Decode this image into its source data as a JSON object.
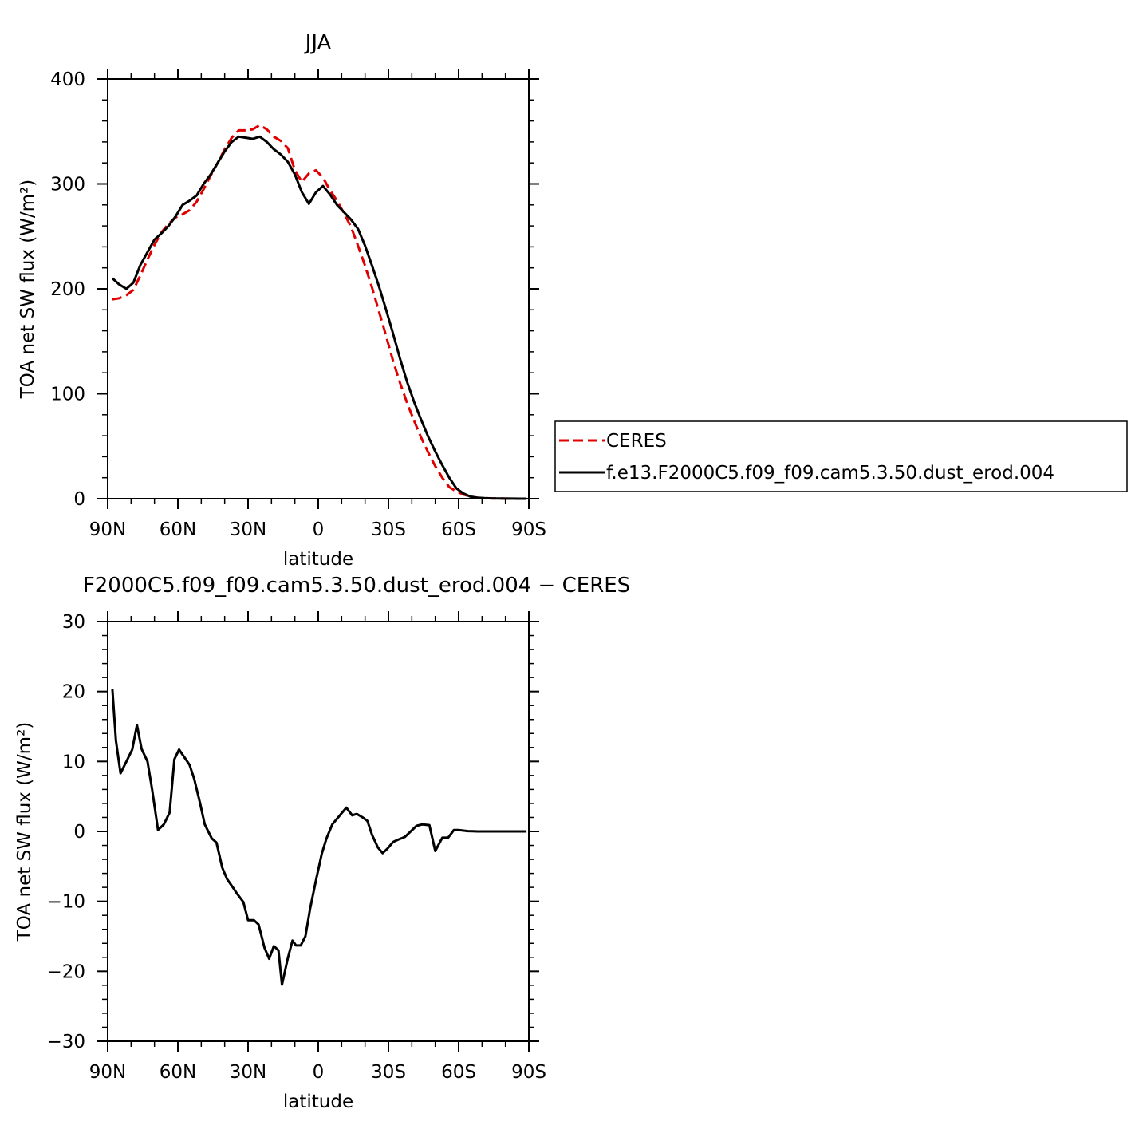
{
  "chart_data": [
    {
      "type": "line",
      "title": "JJA",
      "xlabel": "latitude",
      "ylabel": "TOA net SW flux (W/m²)",
      "xlim": [
        90,
        -90
      ],
      "ylim": [
        0,
        400
      ],
      "x_ticks": [
        {
          "value": 90,
          "label": "90N"
        },
        {
          "value": 60,
          "label": "60N"
        },
        {
          "value": 30,
          "label": "30N"
        },
        {
          "value": 0,
          "label": "0"
        },
        {
          "value": -30,
          "label": "30S"
        },
        {
          "value": -60,
          "label": "60S"
        },
        {
          "value": -90,
          "label": "90S"
        }
      ],
      "y_ticks": [
        {
          "value": 0,
          "label": "0"
        },
        {
          "value": 100,
          "label": "100"
        },
        {
          "value": 200,
          "label": "200"
        },
        {
          "value": 300,
          "label": "300"
        },
        {
          "value": 400,
          "label": "400"
        }
      ],
      "grid": false,
      "legend": {
        "position": "right",
        "entries": [
          {
            "label": "CERES",
            "color": "#e00000",
            "dash": "dashed"
          },
          {
            "label": "f.e13.F2000C5.f09_f09.cam5.3.50.dust_erod.004",
            "color": "#000000",
            "dash": "solid"
          }
        ]
      },
      "series": [
        {
          "name": "CERES",
          "color": "#e00000",
          "dash": "dashed",
          "x": [
            88,
            85,
            82,
            79,
            76,
            73,
            70,
            67,
            64,
            61,
            58,
            55,
            52,
            49,
            46,
            43,
            40,
            37,
            34,
            31,
            28,
            25,
            22,
            19,
            16,
            13,
            10,
            7,
            4,
            1,
            -2,
            -5,
            -8,
            -11,
            -14,
            -17,
            -20,
            -23,
            -26,
            -29,
            -32,
            -35,
            -38,
            -41,
            -44,
            -47,
            -50,
            -53,
            -56,
            -59,
            -62,
            -65,
            -68,
            -71,
            -74,
            -77,
            -80,
            -83,
            -86,
            -89
          ],
          "values": [
            190,
            191,
            194,
            199,
            213,
            228,
            242,
            254,
            262,
            268,
            271,
            275,
            283,
            295,
            308,
            320,
            333,
            344,
            351,
            351,
            352,
            356,
            352,
            345,
            341,
            334,
            313,
            302,
            310,
            313,
            306,
            294,
            284,
            272,
            259,
            241,
            222,
            201,
            178,
            155,
            131,
            110,
            91,
            74,
            58,
            44,
            31,
            20,
            11,
            7,
            4,
            2,
            1,
            0.5,
            0.3,
            0.2,
            0.1,
            0.05,
            0.02,
            0
          ]
        },
        {
          "name": "f.e13.F2000C5.f09_f09.cam5.3.50.dust_erod.004",
          "color": "#000000",
          "dash": "solid",
          "x": [
            88,
            85,
            82,
            79,
            76,
            73,
            70,
            67,
            64,
            61,
            58,
            55,
            52,
            49,
            46,
            43,
            40,
            37,
            34,
            31,
            28,
            25,
            22,
            19,
            16,
            13,
            10,
            7,
            4,
            1,
            -2,
            -5,
            -8,
            -11,
            -14,
            -17,
            -20,
            -23,
            -26,
            -29,
            -32,
            -35,
            -38,
            -41,
            -44,
            -47,
            -50,
            -53,
            -56,
            -59,
            -62,
            -65,
            -68,
            -71,
            -74,
            -77,
            -80,
            -83,
            -86,
            -89
          ],
          "values": [
            210,
            204,
            200,
            206,
            223,
            235,
            247,
            253,
            260,
            269,
            280,
            284,
            289,
            300,
            309,
            320,
            331,
            340,
            345,
            344,
            343,
            345,
            340,
            333,
            328,
            321,
            309,
            292,
            281,
            292,
            298,
            290,
            280,
            273,
            266,
            257,
            241,
            222,
            202,
            180,
            157,
            133,
            111,
            92,
            75,
            59,
            45,
            32,
            20,
            10,
            5,
            2,
            1,
            0.5,
            0.3,
            0.2,
            0.1,
            0.05,
            0.02,
            0
          ]
        }
      ]
    },
    {
      "type": "line",
      "title": "F2000C5.f09_f09.cam5.3.50.dust_erod.004 − CERES",
      "xlabel": "latitude",
      "ylabel": "TOA net SW flux (W/m²)",
      "xlim": [
        90,
        -90
      ],
      "ylim": [
        -30,
        30
      ],
      "x_ticks": [
        {
          "value": 90,
          "label": "90N"
        },
        {
          "value": 60,
          "label": "60N"
        },
        {
          "value": 30,
          "label": "30N"
        },
        {
          "value": 0,
          "label": "0"
        },
        {
          "value": -30,
          "label": "30S"
        },
        {
          "value": -60,
          "label": "60S"
        },
        {
          "value": -90,
          "label": "90S"
        }
      ],
      "y_ticks": [
        {
          "value": -30,
          "label": "−30"
        },
        {
          "value": -20,
          "label": "−20"
        },
        {
          "value": -10,
          "label": "−10"
        },
        {
          "value": 0,
          "label": "0"
        },
        {
          "value": 10,
          "label": "10"
        },
        {
          "value": 20,
          "label": "20"
        },
        {
          "value": 30,
          "label": "30"
        }
      ],
      "grid": false,
      "series": [
        {
          "color": "#000000",
          "dash": "solid",
          "x": [
            88,
            86.5,
            84.5,
            82,
            79.5,
            77.5,
            75.5,
            73,
            71,
            68.5,
            66,
            63.5,
            61.5,
            59.5,
            57,
            55,
            53,
            50.5,
            48.5,
            45.5,
            43.5,
            41,
            39,
            36.5,
            34.5,
            32,
            30,
            27.5,
            25.5,
            23,
            21,
            19,
            17,
            15.5,
            13,
            11,
            9.5,
            7.5,
            5.5,
            3.5,
            1,
            -1.5,
            -3.5,
            -6,
            -8.5,
            -10,
            -12,
            -14.5,
            -16.5,
            -19,
            -21,
            -23,
            -25.5,
            -27.5,
            -29.5,
            -32,
            -34,
            -37,
            -39.5,
            -42,
            -44.5,
            -47.5,
            -50,
            -53,
            -55.5,
            -58,
            -60,
            -62.5,
            -64,
            -66,
            -68,
            -70,
            -72,
            -74,
            -76,
            -80,
            -84,
            -89
          ],
          "values": [
            20.3,
            13.0,
            8.3,
            10.0,
            11.7,
            15.2,
            11.8,
            10.0,
            6.0,
            0.2,
            1.0,
            2.7,
            10.3,
            11.7,
            10.5,
            9.5,
            7.5,
            4.0,
            1.0,
            -1.0,
            -1.6,
            -5.2,
            -6.8,
            -8.0,
            -9.0,
            -10.1,
            -12.7,
            -12.7,
            -13.3,
            -16.6,
            -18.2,
            -16.4,
            -17.0,
            -21.9,
            -18.1,
            -15.6,
            -16.3,
            -16.3,
            -15.0,
            -11.1,
            -7.0,
            -3.2,
            -1.0,
            1.0,
            2.0,
            2.6,
            3.4,
            2.3,
            2.5,
            2.0,
            1.5,
            -0.5,
            -2.3,
            -3.1,
            -2.5,
            -1.5,
            -1.2,
            -0.8,
            0.0,
            0.8,
            1.0,
            0.9,
            -2.8,
            -0.9,
            -0.9,
            0.2,
            0.2,
            0.1,
            0.05,
            0.02,
            0.0,
            0.0,
            0.0,
            0.0,
            0.0,
            0.0,
            0.0,
            0.0
          ]
        }
      ]
    }
  ]
}
